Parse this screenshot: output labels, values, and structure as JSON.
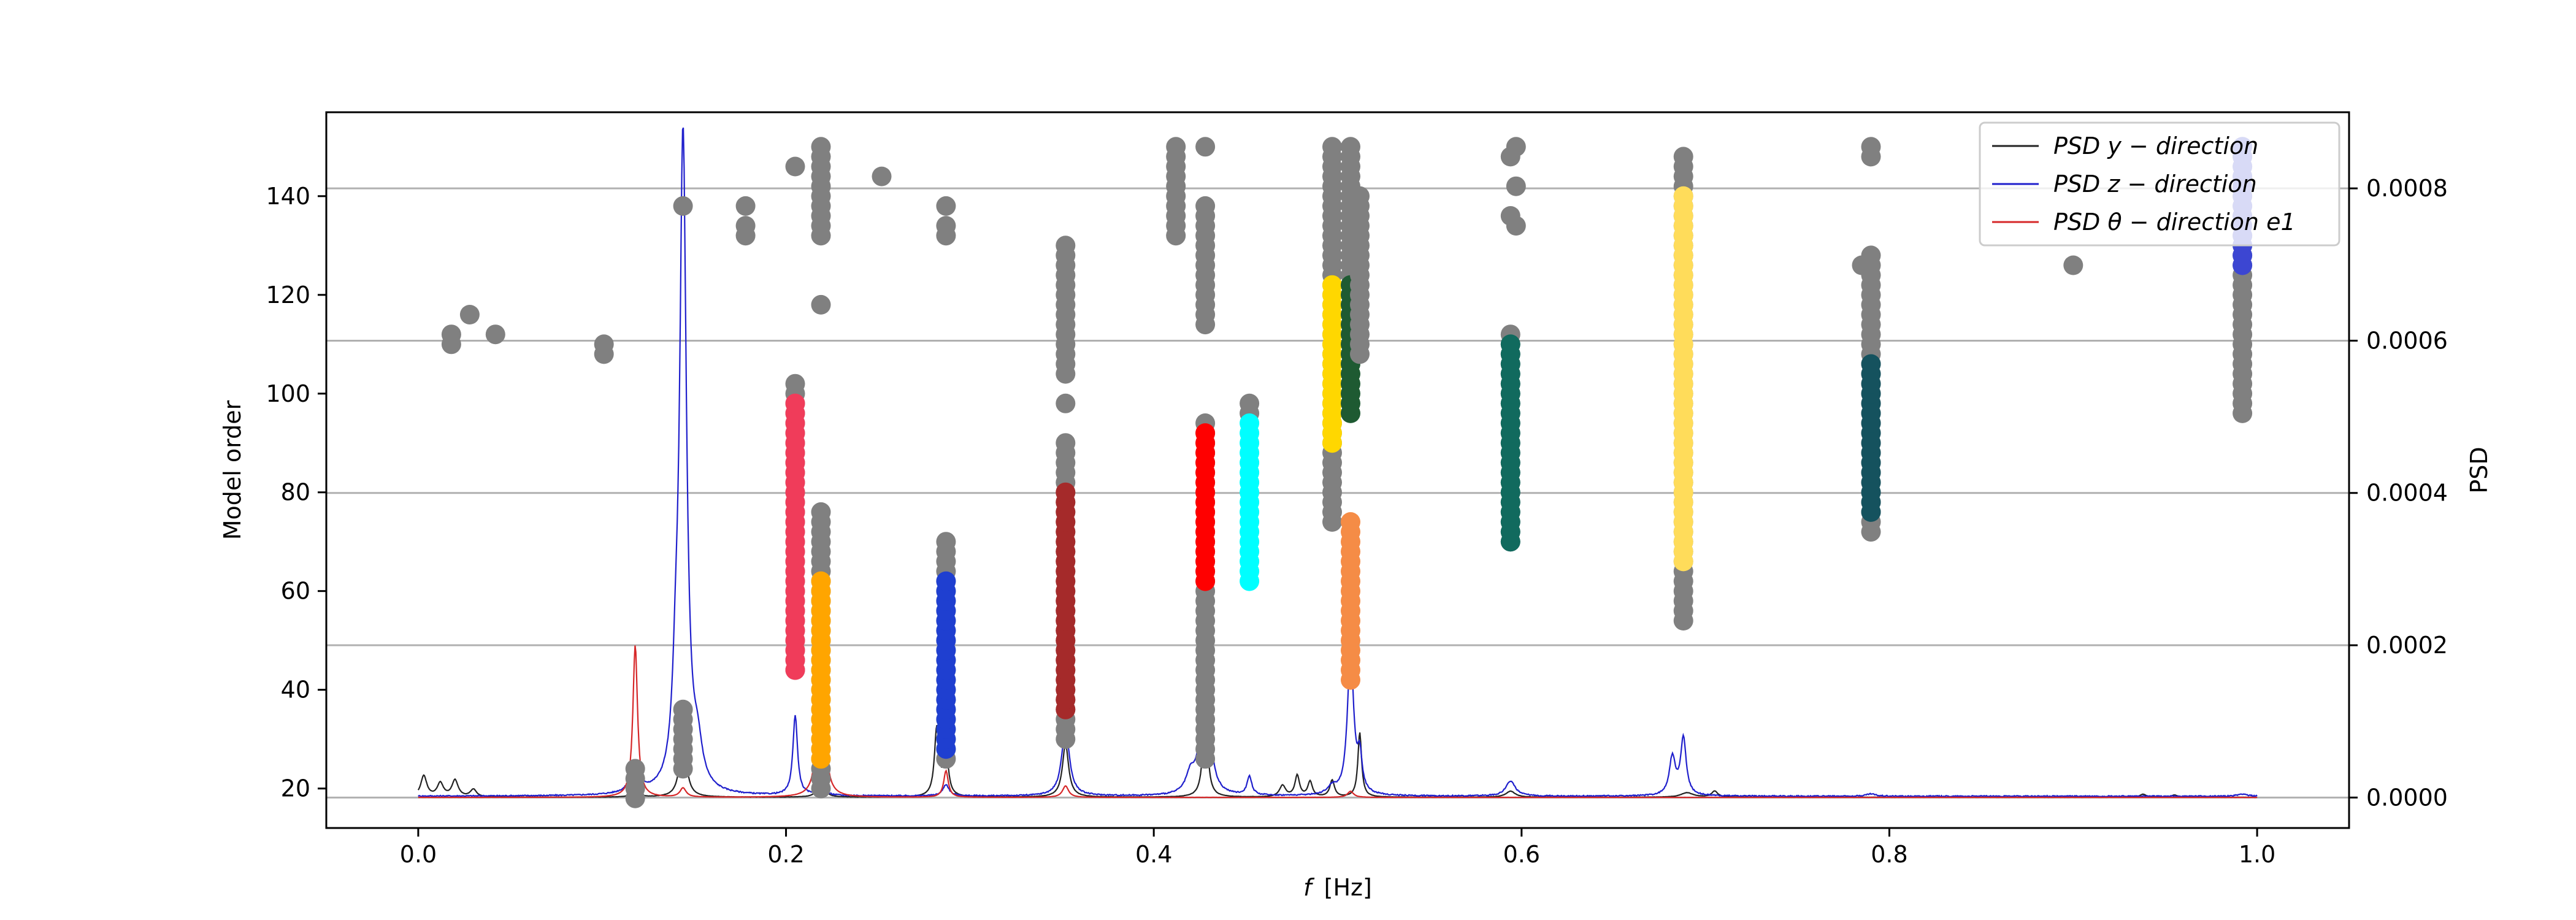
{
  "chart_data": {
    "type": "scatter",
    "title": "",
    "xlabel_italic": "f",
    "xlabel_unit": "[Hz]",
    "ylabel": "Model order",
    "y2label": "PSD",
    "xlim": [
      -0.05,
      1.05
    ],
    "ylim": [
      12,
      157
    ],
    "y2lim": [
      -4e-05,
      0.0009
    ],
    "xticks": [
      0.0,
      0.2,
      0.4,
      0.6,
      0.8,
      1.0
    ],
    "xtick_labels": [
      "0.0",
      "0.2",
      "0.4",
      "0.6",
      "0.8",
      "1.0"
    ],
    "yticks": [
      20,
      40,
      60,
      80,
      100,
      120,
      140
    ],
    "ytick_labels": [
      "20",
      "40",
      "60",
      "80",
      "100",
      "120",
      "140"
    ],
    "y2ticks": [
      0.0,
      0.0002,
      0.0004,
      0.0006,
      0.0008
    ],
    "y2tick_labels": [
      "0.0000",
      "0.0002",
      "0.0004",
      "0.0006",
      "0.0008"
    ],
    "grid": "y2-horizontal",
    "legend_position": "top-right",
    "legend": [
      {
        "label": "PSD y − direction",
        "color": "#222222"
      },
      {
        "label": "PSD z − direction",
        "color": "#1f1fcc"
      },
      {
        "label": "PSD θ − direction e1",
        "color": "#d62728"
      }
    ],
    "stabilization_columns": [
      {
        "f": 0.018,
        "orders": [
          110,
          112
        ],
        "color": "#808080"
      },
      {
        "f": 0.028,
        "orders": [
          116
        ],
        "color": "#808080"
      },
      {
        "f": 0.042,
        "orders": [
          112
        ],
        "color": "#808080"
      },
      {
        "f": 0.101,
        "orders": [
          108,
          110
        ],
        "color": "#808080"
      },
      {
        "f": 0.118,
        "orders": [
          18,
          20,
          22,
          24
        ],
        "color": "#808080"
      },
      {
        "f": 0.144,
        "orders": [
          138
        ],
        "color": "#808080"
      },
      {
        "f": 0.144,
        "range": [
          24,
          36
        ],
        "color": "#808080"
      },
      {
        "f": 0.178,
        "orders": [
          132,
          134,
          138
        ],
        "color": "#808080"
      },
      {
        "f": 0.205,
        "orders": [
          146
        ],
        "color": "#808080"
      },
      {
        "f": 0.205,
        "range": [
          44,
          102
        ],
        "color": "#808080"
      },
      {
        "f": 0.205,
        "range": [
          44,
          98
        ],
        "color": "#f03c5a"
      },
      {
        "f": 0.219,
        "range": [
          132,
          150
        ],
        "color": "#808080"
      },
      {
        "f": 0.219,
        "orders": [
          118
        ],
        "color": "#808080"
      },
      {
        "f": 0.219,
        "range": [
          20,
          76
        ],
        "color": "#808080"
      },
      {
        "f": 0.219,
        "range": [
          26,
          62
        ],
        "color": "#ffa500"
      },
      {
        "f": 0.252,
        "orders": [
          144
        ],
        "color": "#808080"
      },
      {
        "f": 0.287,
        "orders": [
          132,
          134,
          138
        ],
        "color": "#808080"
      },
      {
        "f": 0.287,
        "range": [
          26,
          70
        ],
        "color": "#808080"
      },
      {
        "f": 0.287,
        "range": [
          28,
          62
        ],
        "color": "#1f3fd0"
      },
      {
        "f": 0.352,
        "range": [
          104,
          130
        ],
        "color": "#808080"
      },
      {
        "f": 0.352,
        "orders": [
          98
        ],
        "color": "#808080"
      },
      {
        "f": 0.352,
        "range": [
          30,
          90
        ],
        "color": "#808080"
      },
      {
        "f": 0.352,
        "range": [
          36,
          80
        ],
        "color": "#a52a2a"
      },
      {
        "f": 0.412,
        "range": [
          132,
          150
        ],
        "color": "#808080"
      },
      {
        "f": 0.428,
        "orders": [
          150
        ],
        "color": "#808080"
      },
      {
        "f": 0.428,
        "range": [
          114,
          138
        ],
        "color": "#808080"
      },
      {
        "f": 0.428,
        "range": [
          26,
          94
        ],
        "color": "#808080"
      },
      {
        "f": 0.428,
        "range": [
          62,
          92
        ],
        "color": "#ff0000"
      },
      {
        "f": 0.452,
        "orders": [
          96,
          98
        ],
        "color": "#808080"
      },
      {
        "f": 0.452,
        "range": [
          62,
          94
        ],
        "color": "#00ffff"
      },
      {
        "f": 0.497,
        "range": [
          74,
          150
        ],
        "color": "#808080"
      },
      {
        "f": 0.497,
        "range": [
          90,
          122
        ],
        "color": "#ffd700"
      },
      {
        "f": 0.507,
        "range": [
          124,
          150
        ],
        "color": "#808080"
      },
      {
        "f": 0.507,
        "range": [
          96,
          122
        ],
        "color": "#1e5a32"
      },
      {
        "f": 0.507,
        "range": [
          42,
          74
        ],
        "color": "#f58c46"
      },
      {
        "f": 0.512,
        "range": [
          108,
          140
        ],
        "color": "#808080"
      },
      {
        "f": 0.594,
        "orders": [
          136,
          148
        ],
        "color": "#808080"
      },
      {
        "f": 0.597,
        "orders": [
          134,
          142,
          150
        ],
        "color": "#808080"
      },
      {
        "f": 0.594,
        "range": [
          70,
          112
        ],
        "color": "#808080"
      },
      {
        "f": 0.594,
        "range": [
          70,
          110
        ],
        "color": "#116a5e"
      },
      {
        "f": 0.688,
        "range": [
          54,
          148
        ],
        "color": "#808080"
      },
      {
        "f": 0.688,
        "range": [
          66,
          140
        ],
        "color": "#ffdc5a"
      },
      {
        "f": 0.785,
        "orders": [
          126
        ],
        "color": "#808080"
      },
      {
        "f": 0.79,
        "range": [
          72,
          128
        ],
        "color": "#808080"
      },
      {
        "f": 0.79,
        "orders": [
          148,
          150
        ],
        "color": "#808080"
      },
      {
        "f": 0.79,
        "range": [
          76,
          106
        ],
        "color": "#15525e"
      },
      {
        "f": 0.9,
        "orders": [
          126
        ],
        "color": "#808080"
      },
      {
        "f": 0.992,
        "range": [
          96,
          150
        ],
        "color": "#808080"
      },
      {
        "f": 0.992,
        "range": [
          126,
          150
        ],
        "color": "#3c46d2"
      }
    ],
    "psd_series": [
      {
        "name": "PSD y − direction",
        "color": "#222222",
        "baseline": 2e-07,
        "peaks": [
          [
            0.003,
            2.8e-05,
            0.002
          ],
          [
            0.012,
            1.8e-05,
            0.002
          ],
          [
            0.02,
            2.2e-05,
            0.002
          ],
          [
            0.03,
            1e-05,
            0.002
          ],
          [
            0.118,
            1e-05,
            0.002
          ],
          [
            0.144,
            9e-05,
            0.002
          ],
          [
            0.219,
            4e-05,
            0.0015
          ],
          [
            0.282,
            9e-05,
            0.0015
          ],
          [
            0.287,
            6e-05,
            0.0015
          ],
          [
            0.352,
            7e-05,
            0.002
          ],
          [
            0.428,
            0.00012,
            0.0015
          ],
          [
            0.47,
            1.5e-05,
            0.002
          ],
          [
            0.478,
            2.8e-05,
            0.0015
          ],
          [
            0.485,
            2e-05,
            0.0015
          ],
          [
            0.497,
            2.2e-05,
            0.0015
          ],
          [
            0.512,
            8.5e-05,
            0.0012
          ],
          [
            0.594,
            8e-06,
            0.003
          ],
          [
            0.69,
            6e-06,
            0.004
          ],
          [
            0.705,
            8e-06,
            0.002
          ],
          [
            0.938,
            4e-06,
            0.002
          ],
          [
            0.955,
            3e-06,
            0.002
          ]
        ]
      },
      {
        "name": "PSD z − direction",
        "color": "#1f1fcc",
        "baseline": 1e-06,
        "peaks": [
          [
            0.118,
            3.5e-05,
            0.003
          ],
          [
            0.14,
            9e-05,
            0.002
          ],
          [
            0.144,
            0.00086,
            0.0022
          ],
          [
            0.152,
            4.5e-05,
            0.003
          ],
          [
            0.205,
            0.000105,
            0.0015
          ],
          [
            0.219,
            1.5e-05,
            0.002
          ],
          [
            0.287,
            1.5e-05,
            0.002
          ],
          [
            0.352,
            9e-05,
            0.0025
          ],
          [
            0.42,
            2.5e-05,
            0.003
          ],
          [
            0.428,
            0.00034,
            0.0018
          ],
          [
            0.452,
            2.5e-05,
            0.0015
          ],
          [
            0.497,
            1e-05,
            0.003
          ],
          [
            0.507,
            0.00019,
            0.002
          ],
          [
            0.512,
            4.5e-05,
            0.0015
          ],
          [
            0.594,
            2e-05,
            0.003
          ],
          [
            0.682,
            5e-05,
            0.002
          ],
          [
            0.688,
            7.5e-05,
            0.0018
          ],
          [
            0.79,
            3e-06,
            0.003
          ],
          [
            0.992,
            3e-06,
            0.003
          ]
        ]
      },
      {
        "name": "PSD θ − direction e1",
        "color": "#d62728",
        "baseline": 1e-07,
        "peaks": [
          [
            0.118,
            0.0002,
            0.0015
          ],
          [
            0.144,
            1.2e-05,
            0.002
          ],
          [
            0.219,
            0.00033,
            0.0015
          ],
          [
            0.287,
            3.5e-05,
            0.0015
          ],
          [
            0.352,
            1.5e-05,
            0.002
          ],
          [
            0.507,
            8e-06,
            0.002
          ]
        ]
      }
    ]
  }
}
